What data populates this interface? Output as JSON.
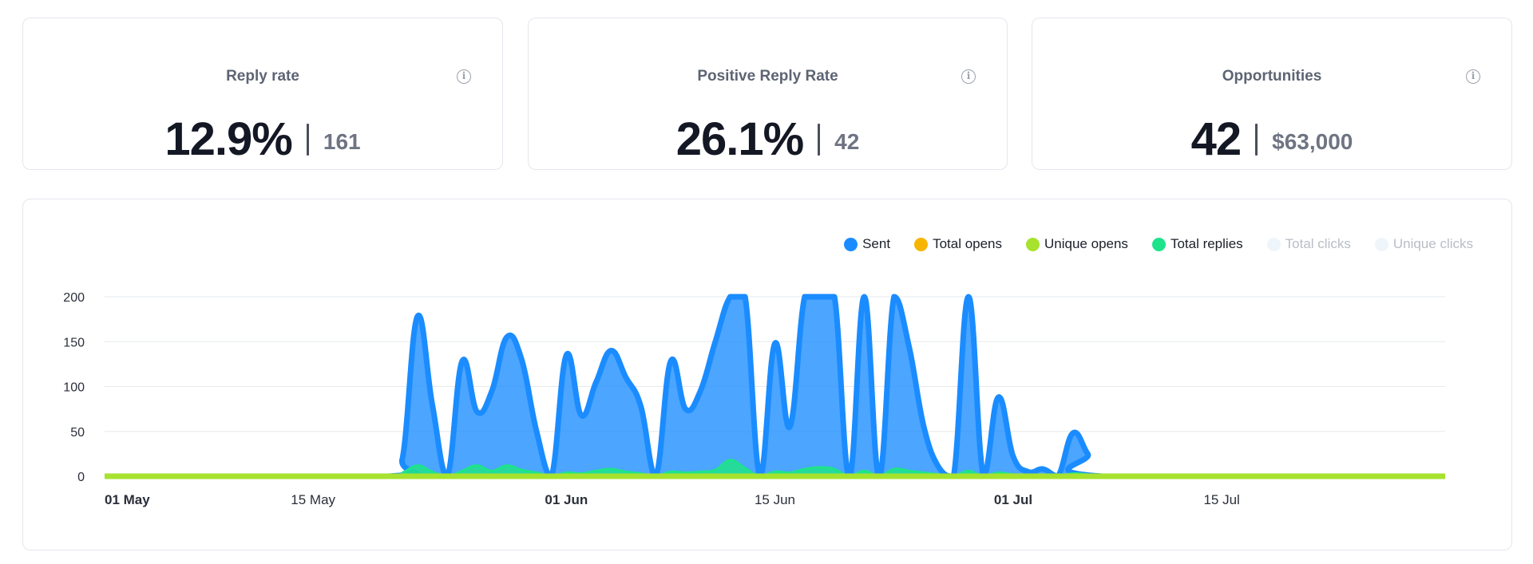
{
  "stats": [
    {
      "title": "Reply rate",
      "value": "12.9%",
      "secondary": "161"
    },
    {
      "title": "Positive Reply Rate",
      "value": "26.1%",
      "secondary": "42"
    },
    {
      "title": "Opportunities",
      "value": "42",
      "secondary": "$63,000"
    }
  ],
  "info_glyph": "i",
  "legend": [
    {
      "name": "Sent",
      "color": "#1a8cff",
      "enabled": true
    },
    {
      "name": "Total opens",
      "color": "#f7b500",
      "enabled": true
    },
    {
      "name": "Unique opens",
      "color": "#a6e22e",
      "enabled": true
    },
    {
      "name": "Total replies",
      "color": "#1ee38a",
      "enabled": true
    },
    {
      "name": "Total clicks",
      "color": "#eef5fb",
      "enabled": false
    },
    {
      "name": "Unique clicks",
      "color": "#eef5fb",
      "enabled": false
    }
  ],
  "chart_data": {
    "type": "area",
    "x_range": [
      "2024-05-01",
      "2024-07-30"
    ],
    "ylim": [
      0,
      200
    ],
    "y_ticks": [
      0,
      50,
      100,
      150,
      200
    ],
    "x_ticks": [
      {
        "date": "2024-05-01",
        "label": "01 May",
        "bold": true
      },
      {
        "date": "2024-05-15",
        "label": "15 May",
        "bold": false
      },
      {
        "date": "2024-06-01",
        "label": "01 Jun",
        "bold": true
      },
      {
        "date": "2024-06-15",
        "label": "15 Jun",
        "bold": false
      },
      {
        "date": "2024-07-01",
        "label": "01 Jul",
        "bold": true
      },
      {
        "date": "2024-07-15",
        "label": "15 Jul",
        "bold": false
      }
    ],
    "grid": true,
    "legend_position": "top-right",
    "series": [
      {
        "name": "Sent",
        "color": "#1a8cff",
        "points": [
          [
            "2024-05-01",
            0
          ],
          [
            "2024-05-20",
            0
          ],
          [
            "2024-05-21",
            20
          ],
          [
            "2024-05-22",
            178
          ],
          [
            "2024-05-23",
            80
          ],
          [
            "2024-05-24",
            0
          ],
          [
            "2024-05-25",
            128
          ],
          [
            "2024-05-26",
            72
          ],
          [
            "2024-05-27",
            95
          ],
          [
            "2024-05-28",
            155
          ],
          [
            "2024-05-29",
            130
          ],
          [
            "2024-05-30",
            50
          ],
          [
            "2024-05-31",
            0
          ],
          [
            "2024-06-01",
            135
          ],
          [
            "2024-06-02",
            68
          ],
          [
            "2024-06-03",
            105
          ],
          [
            "2024-06-04",
            140
          ],
          [
            "2024-06-05",
            110
          ],
          [
            "2024-06-06",
            78
          ],
          [
            "2024-06-07",
            0
          ],
          [
            "2024-06-08",
            128
          ],
          [
            "2024-06-09",
            75
          ],
          [
            "2024-06-10",
            95
          ],
          [
            "2024-06-11",
            150
          ],
          [
            "2024-06-12",
            200
          ],
          [
            "2024-06-13",
            200
          ],
          [
            "2024-06-14",
            0
          ],
          [
            "2024-06-15",
            148
          ],
          [
            "2024-06-16",
            55
          ],
          [
            "2024-06-17",
            200
          ],
          [
            "2024-06-18",
            200
          ],
          [
            "2024-06-19",
            200
          ],
          [
            "2024-06-20",
            0
          ],
          [
            "2024-06-21",
            200
          ],
          [
            "2024-06-22",
            0
          ],
          [
            "2024-06-23",
            200
          ],
          [
            "2024-06-24",
            145
          ],
          [
            "2024-06-25",
            55
          ],
          [
            "2024-06-26",
            10
          ],
          [
            "2024-06-27",
            0
          ],
          [
            "2024-06-28",
            200
          ],
          [
            "2024-06-29",
            0
          ],
          [
            "2024-06-30",
            88
          ],
          [
            "2024-07-01",
            22
          ],
          [
            "2024-07-02",
            5
          ],
          [
            "2024-07-03",
            8
          ],
          [
            "2024-07-04",
            0
          ],
          [
            "2024-07-05",
            48
          ],
          [
            "2024-07-06",
            25
          ],
          [
            "2024-07-07",
            0
          ],
          [
            "2024-07-30",
            0
          ]
        ]
      },
      {
        "name": "Total replies",
        "color": "#1ee38a",
        "points": [
          [
            "2024-05-01",
            0
          ],
          [
            "2024-05-20",
            0
          ],
          [
            "2024-05-21",
            4
          ],
          [
            "2024-05-22",
            12
          ],
          [
            "2024-05-23",
            5
          ],
          [
            "2024-05-24",
            0
          ],
          [
            "2024-05-25",
            6
          ],
          [
            "2024-05-26",
            12
          ],
          [
            "2024-05-27",
            6
          ],
          [
            "2024-05-28",
            12
          ],
          [
            "2024-05-29",
            7
          ],
          [
            "2024-05-30",
            4
          ],
          [
            "2024-05-31",
            0
          ],
          [
            "2024-06-01",
            4
          ],
          [
            "2024-06-02",
            3
          ],
          [
            "2024-06-03",
            6
          ],
          [
            "2024-06-04",
            8
          ],
          [
            "2024-06-05",
            5
          ],
          [
            "2024-06-06",
            3
          ],
          [
            "2024-06-07",
            0
          ],
          [
            "2024-06-08",
            5
          ],
          [
            "2024-06-09",
            4
          ],
          [
            "2024-06-10",
            5
          ],
          [
            "2024-06-11",
            7
          ],
          [
            "2024-06-12",
            18
          ],
          [
            "2024-06-13",
            9
          ],
          [
            "2024-06-14",
            0
          ],
          [
            "2024-06-15",
            5
          ],
          [
            "2024-06-16",
            4
          ],
          [
            "2024-06-17",
            8
          ],
          [
            "2024-06-18",
            10
          ],
          [
            "2024-06-19",
            8
          ],
          [
            "2024-06-20",
            0
          ],
          [
            "2024-06-21",
            6
          ],
          [
            "2024-06-22",
            0
          ],
          [
            "2024-06-23",
            8
          ],
          [
            "2024-06-24",
            6
          ],
          [
            "2024-06-25",
            4
          ],
          [
            "2024-06-26",
            2
          ],
          [
            "2024-06-27",
            0
          ],
          [
            "2024-06-28",
            6
          ],
          [
            "2024-06-29",
            0
          ],
          [
            "2024-06-30",
            4
          ],
          [
            "2024-07-01",
            2
          ],
          [
            "2024-07-02",
            1
          ],
          [
            "2024-07-03",
            1
          ],
          [
            "2024-07-04",
            0
          ],
          [
            "2024-07-05",
            3
          ],
          [
            "2024-07-06",
            2
          ],
          [
            "2024-07-07",
            0
          ],
          [
            "2024-07-30",
            0
          ]
        ]
      },
      {
        "name": "Total opens",
        "color": "#f7b500",
        "points": [
          [
            "2024-05-01",
            0
          ],
          [
            "2024-07-30",
            0
          ]
        ]
      },
      {
        "name": "Unique opens",
        "color": "#a6e22e",
        "points": [
          [
            "2024-05-01",
            0
          ],
          [
            "2024-07-30",
            0
          ]
        ]
      }
    ]
  }
}
